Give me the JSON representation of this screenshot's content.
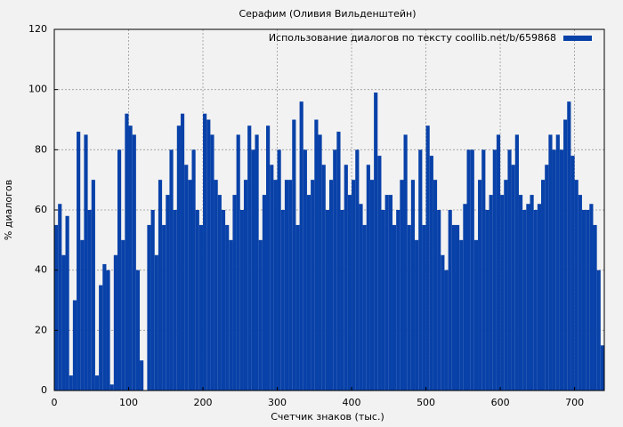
{
  "chart_data": {
    "type": "bar",
    "title": "Серафим (Оливия Вильденштейн)",
    "x_label": "Счетчик знаков (тыс.)",
    "y_label": "% диалогов",
    "legend": "upper right",
    "grid": true,
    "xlim": [
      0,
      740
    ],
    "ylim": [
      0,
      120
    ],
    "xticks": [
      0,
      100,
      200,
      300,
      400,
      500,
      600,
      700
    ],
    "yticks": [
      0,
      20,
      40,
      60,
      80,
      100,
      120
    ],
    "series": [
      {
        "name": "Использование диалогов по тексту coollib.net/b/659868",
        "color": "#0841a8",
        "x": [
          0,
          5,
          10,
          15,
          20,
          25,
          30,
          35,
          40,
          45,
          50,
          55,
          60,
          65,
          70,
          75,
          80,
          85,
          90,
          95,
          100,
          105,
          110,
          115,
          120,
          125,
          130,
          135,
          140,
          145,
          150,
          155,
          160,
          165,
          170,
          175,
          180,
          185,
          190,
          195,
          200,
          205,
          210,
          215,
          220,
          225,
          230,
          235,
          240,
          245,
          250,
          255,
          260,
          265,
          270,
          275,
          280,
          285,
          290,
          295,
          300,
          305,
          310,
          315,
          320,
          325,
          330,
          335,
          340,
          345,
          350,
          355,
          360,
          365,
          370,
          375,
          380,
          385,
          390,
          395,
          400,
          405,
          410,
          415,
          420,
          425,
          430,
          435,
          440,
          445,
          450,
          455,
          460,
          465,
          470,
          475,
          480,
          485,
          490,
          495,
          500,
          505,
          510,
          515,
          520,
          525,
          530,
          535,
          540,
          545,
          550,
          555,
          560,
          565,
          570,
          575,
          580,
          585,
          590,
          595,
          600,
          605,
          610,
          615,
          620,
          625,
          630,
          635,
          640,
          645,
          650,
          655,
          660,
          665,
          670,
          675,
          680,
          685,
          690,
          695,
          700,
          705,
          710,
          715,
          720,
          725,
          730,
          735
        ],
        "values": [
          55,
          62,
          45,
          58,
          5,
          30,
          86,
          50,
          85,
          60,
          70,
          5,
          35,
          42,
          40,
          2,
          45,
          80,
          50,
          92,
          88,
          85,
          40,
          10,
          0,
          55,
          60,
          45,
          70,
          55,
          65,
          80,
          60,
          88,
          92,
          75,
          70,
          80,
          60,
          55,
          92,
          90,
          85,
          70,
          65,
          60,
          55,
          50,
          65,
          85,
          60,
          70,
          88,
          80,
          85,
          50,
          65,
          88,
          75,
          70,
          80,
          60,
          70,
          70,
          90,
          55,
          96,
          80,
          65,
          70,
          90,
          85,
          75,
          60,
          70,
          80,
          86,
          60,
          75,
          65,
          70,
          80,
          62,
          55,
          75,
          70,
          99,
          78,
          60,
          65,
          65,
          55,
          60,
          70,
          85,
          55,
          70,
          50,
          80,
          55,
          88,
          78,
          70,
          60,
          45,
          40,
          60,
          55,
          55,
          50,
          62,
          80,
          80,
          50,
          70,
          80,
          60,
          65,
          80,
          85,
          65,
          70,
          80,
          75,
          85,
          65,
          60,
          62,
          65,
          60,
          62,
          70,
          75,
          85,
          80,
          85,
          80,
          90,
          96,
          78,
          70,
          65,
          60,
          60,
          62,
          55,
          40,
          15
        ]
      }
    ]
  }
}
